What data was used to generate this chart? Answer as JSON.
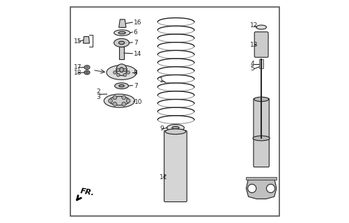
{
  "bg_color": "#ffffff",
  "border_color": "#555555",
  "line_color": "#222222",
  "gray_fill": "#cccccc",
  "dark_fill": "#aaaaaa",
  "light_fill": "#dddddd"
}
